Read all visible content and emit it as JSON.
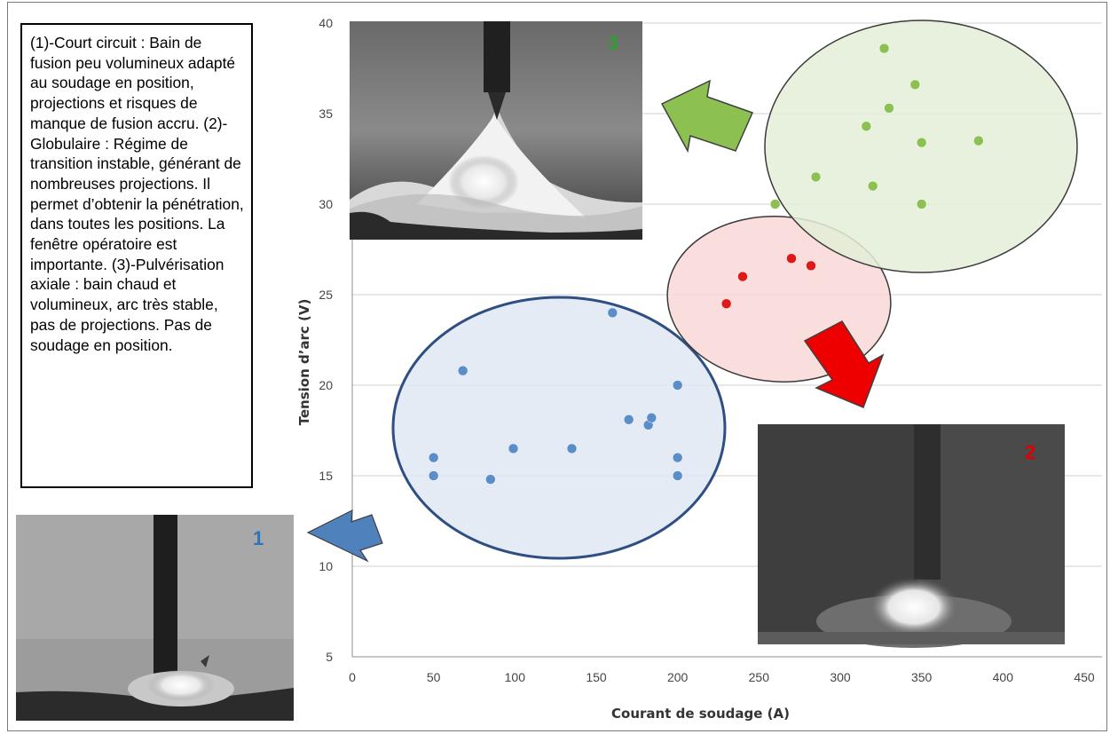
{
  "description": {
    "text": "(1)-Court circuit : Bain de fusion peu volumineux adapté au soudage en position, projections et risques de manque de fusion accru. (2)-Globulaire : Régime de transition instable, générant de nombreuses projections. Il permet d’obtenir la pénétration, dans toutes les positions. La fenêtre opératoire est importante. (3)-Pulvérisation axiale : bain chaud et volumineux, arc très stable, pas de projections. Pas de soudage en position."
  },
  "photos": [
    {
      "label": "1",
      "color": "#2e75b6"
    },
    {
      "label": "2",
      "color": "#e00000"
    },
    {
      "label": "3",
      "color": "#2e9e2e"
    }
  ],
  "chart_data": {
    "type": "scatter",
    "xlabel": "Courant de soudage (A)",
    "ylabel": "Tension d’arc (V)",
    "xlim": [
      0,
      450
    ],
    "ylim": [
      5,
      40
    ],
    "xticks": [
      0,
      50,
      100,
      150,
      200,
      250,
      300,
      350,
      400,
      450
    ],
    "yticks": [
      5,
      10,
      15,
      20,
      25,
      30,
      35,
      40
    ],
    "grid": "horizontal",
    "series": [
      {
        "color": "#5b8ec9",
        "ellipse_fill": "#dfe7f3",
        "ellipse_stroke": "#2f4f82",
        "points": [
          [
            50,
            16
          ],
          [
            50,
            15
          ],
          [
            68,
            20.8
          ],
          [
            85,
            14.8
          ],
          [
            99,
            16.5
          ],
          [
            135,
            16.5
          ],
          [
            160,
            24
          ],
          [
            170,
            18.1
          ],
          [
            182,
            17.8
          ],
          [
            184,
            18.2
          ],
          [
            200,
            20
          ],
          [
            200,
            16
          ],
          [
            200,
            15
          ]
        ]
      },
      {
        "color": "#e01818",
        "ellipse_fill": "#f9d7d7",
        "ellipse_stroke": "#3a3a3a",
        "points": [
          [
            230,
            24.5
          ],
          [
            240,
            26
          ],
          [
            270,
            27
          ],
          [
            282,
            26.6
          ]
        ]
      },
      {
        "color": "#8cc152",
        "ellipse_fill": "#e3efd7",
        "ellipse_stroke": "#3a3a3a",
        "points": [
          [
            260,
            30
          ],
          [
            285,
            31.5
          ],
          [
            316,
            34.3
          ],
          [
            320,
            31
          ],
          [
            327,
            38.6
          ],
          [
            330,
            35.3
          ],
          [
            346,
            36.6
          ],
          [
            350,
            33.4
          ],
          [
            350,
            30
          ],
          [
            385,
            33.5
          ]
        ]
      }
    ]
  }
}
